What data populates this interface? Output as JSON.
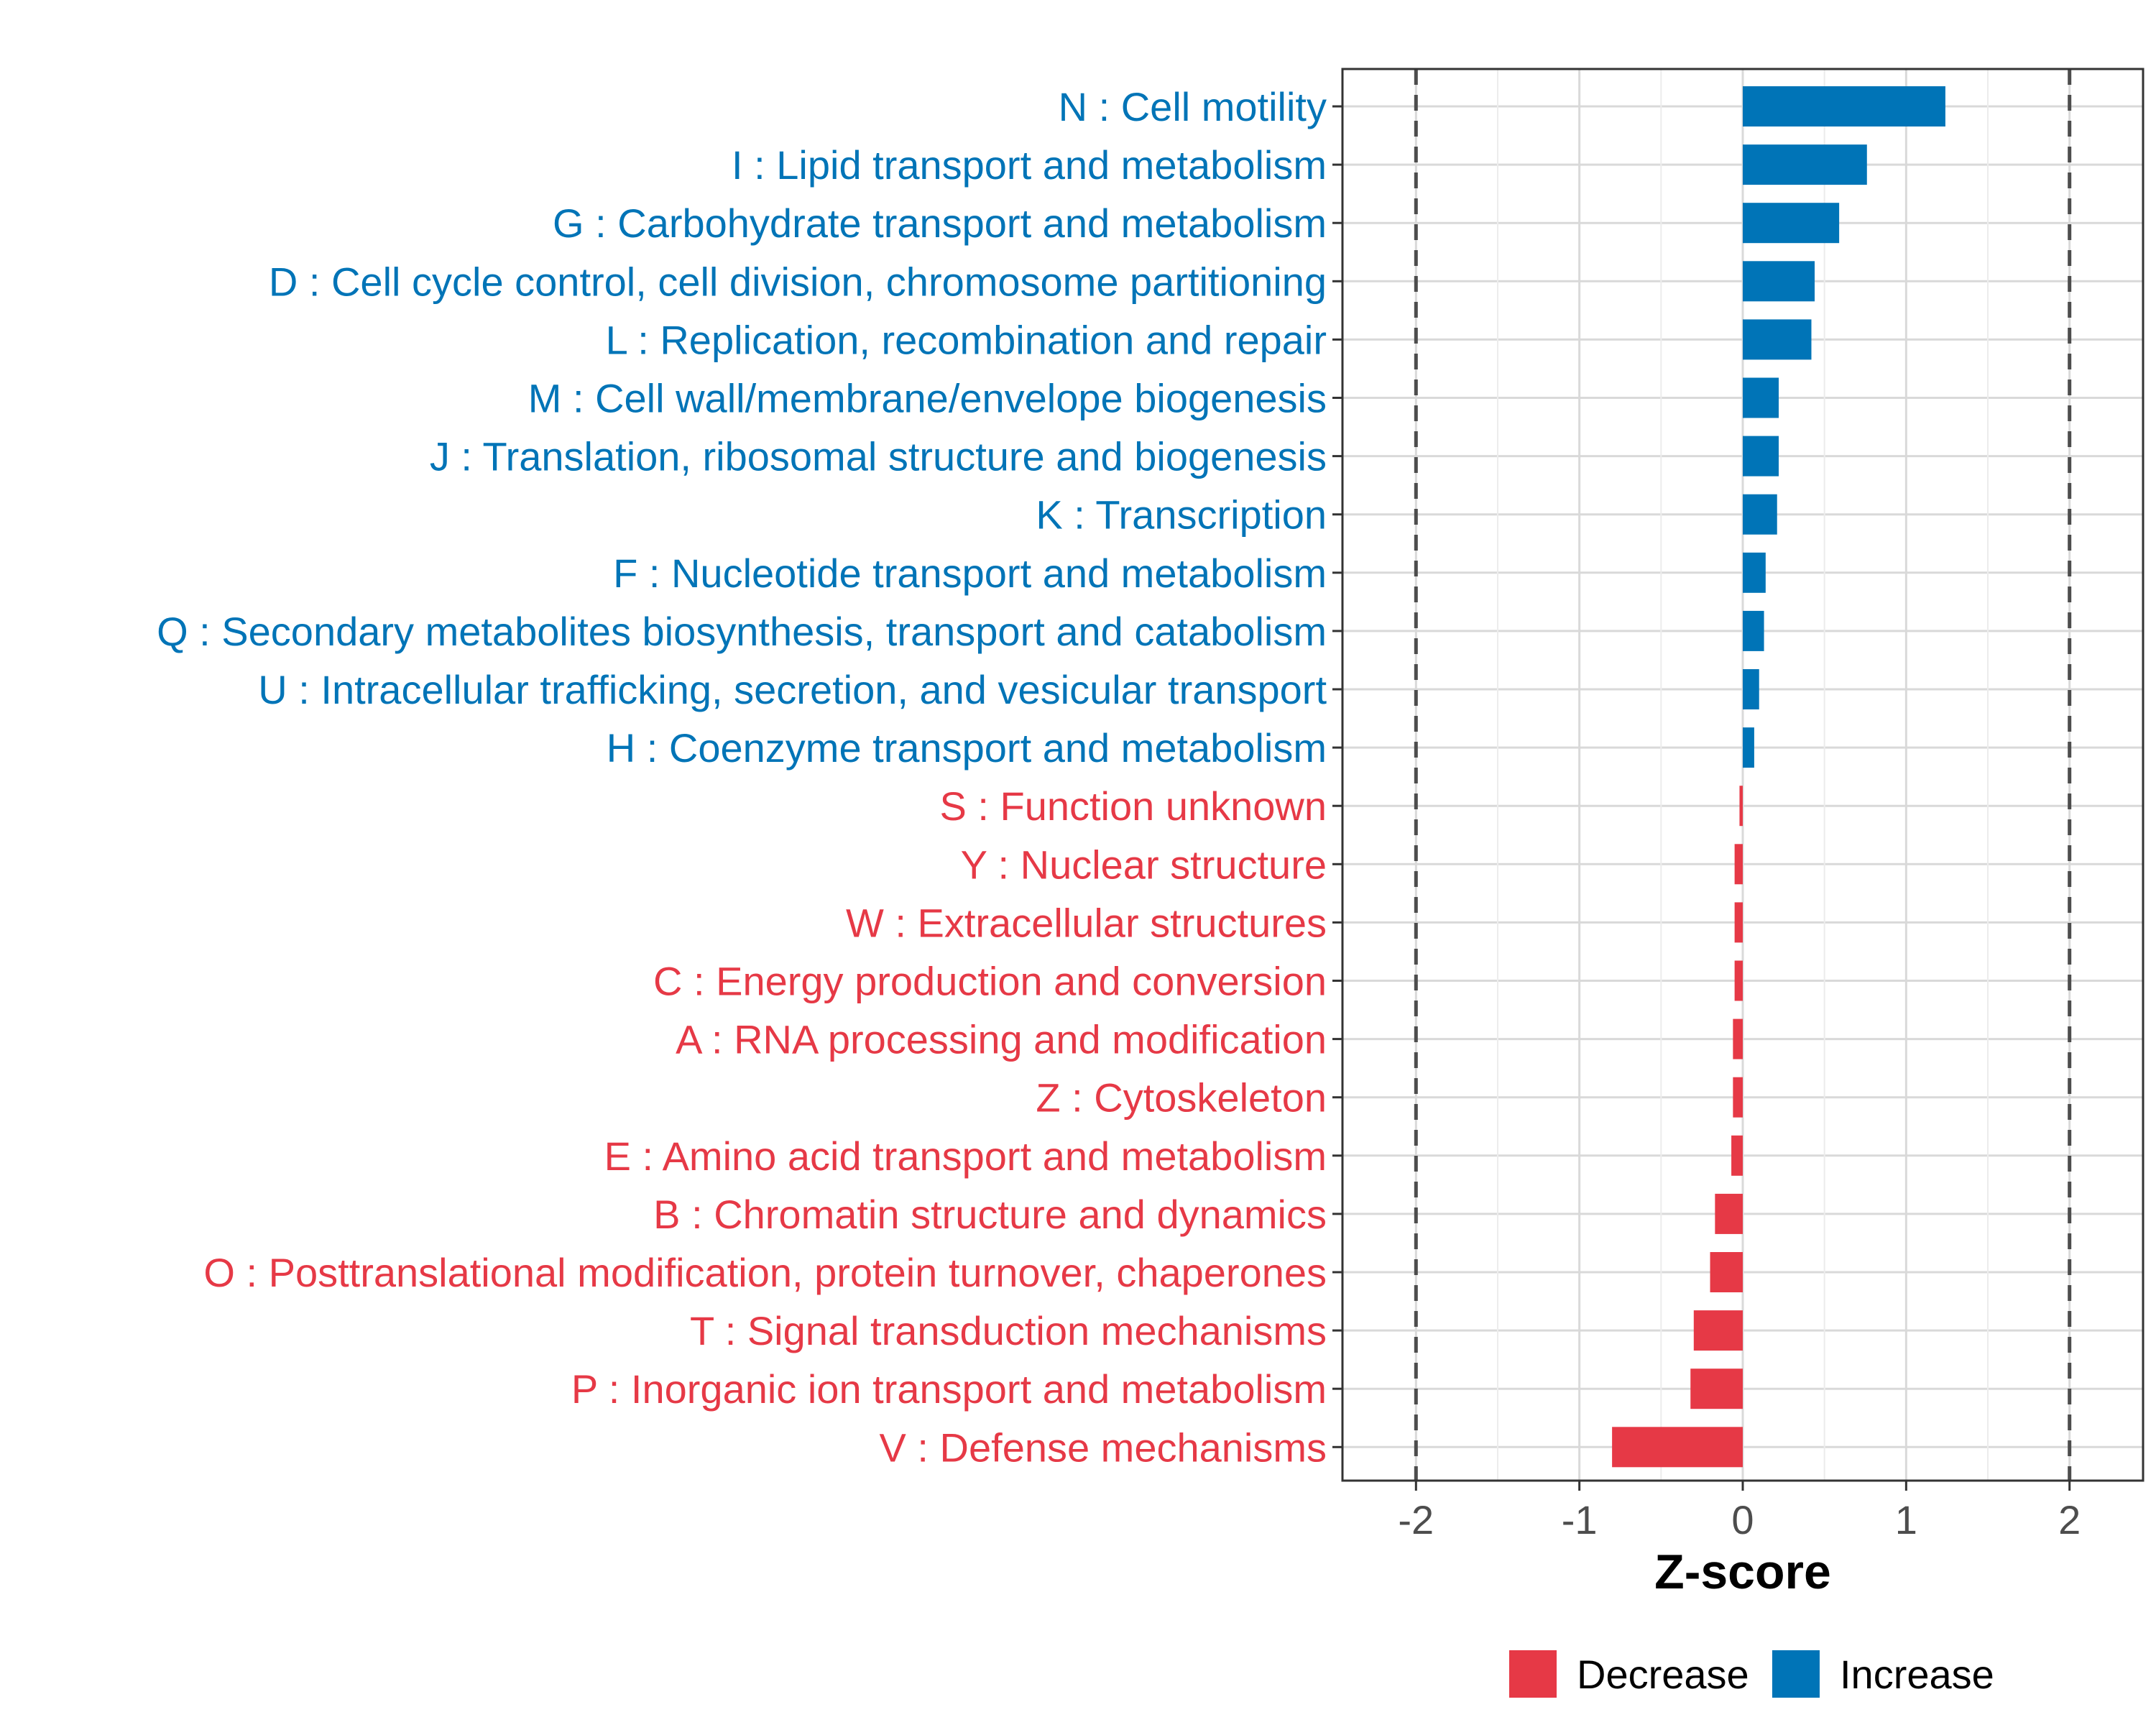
{
  "colors": {
    "increase": "#0074b7",
    "decrease": "#e63946",
    "grid": "#d9d9d9",
    "panel_border": "#333333",
    "ref_line": "#4d4d4d"
  },
  "chart_data": {
    "type": "bar",
    "orientation": "horizontal",
    "xlabel": "Z-score",
    "xlim": [
      -2.45,
      2.45
    ],
    "xticks": [
      -2,
      -1,
      0,
      1,
      2
    ],
    "xtick_labels": [
      "-2",
      "-1",
      "0",
      "1",
      "2"
    ],
    "reference_lines": [
      -2,
      2
    ],
    "grid": true,
    "legend_position": "bottom",
    "legend": [
      {
        "key": "decrease",
        "label": "Decrease"
      },
      {
        "key": "increase",
        "label": "Increase"
      }
    ],
    "categories": [
      "N : Cell motility",
      "I : Lipid transport and metabolism",
      "G : Carbohydrate transport and metabolism",
      "D : Cell cycle control, cell division, chromosome partitioning",
      "L : Replication, recombination and repair",
      "M : Cell wall/membrane/envelope biogenesis",
      "J : Translation, ribosomal structure and biogenesis",
      "K : Transcription",
      "F : Nucleotide transport and metabolism",
      "Q : Secondary metabolites biosynthesis, transport and catabolism",
      "U : Intracellular trafficking, secretion, and vesicular transport",
      "H : Coenzyme transport and metabolism",
      "S : Function unknown",
      "Y : Nuclear structure",
      "W : Extracellular structures",
      "C : Energy production and conversion",
      "A : RNA processing and modification",
      "Z : Cytoskeleton",
      "E : Amino acid transport and metabolism",
      "B : Chromatin structure and dynamics",
      "O : Posttranslational modification, protein turnover, chaperones",
      "T : Signal transduction mechanisms",
      "P : Inorganic ion transport and metabolism",
      "V : Defense mechanisms"
    ],
    "values": [
      1.24,
      0.76,
      0.59,
      0.44,
      0.42,
      0.22,
      0.22,
      0.21,
      0.14,
      0.13,
      0.1,
      0.07,
      -0.02,
      -0.05,
      -0.05,
      -0.05,
      -0.06,
      -0.06,
      -0.07,
      -0.17,
      -0.2,
      -0.3,
      -0.32,
      -0.8
    ],
    "groups": [
      "increase",
      "increase",
      "increase",
      "increase",
      "increase",
      "increase",
      "increase",
      "increase",
      "increase",
      "increase",
      "increase",
      "increase",
      "decrease",
      "decrease",
      "decrease",
      "decrease",
      "decrease",
      "decrease",
      "decrease",
      "decrease",
      "decrease",
      "decrease",
      "decrease",
      "decrease"
    ]
  }
}
